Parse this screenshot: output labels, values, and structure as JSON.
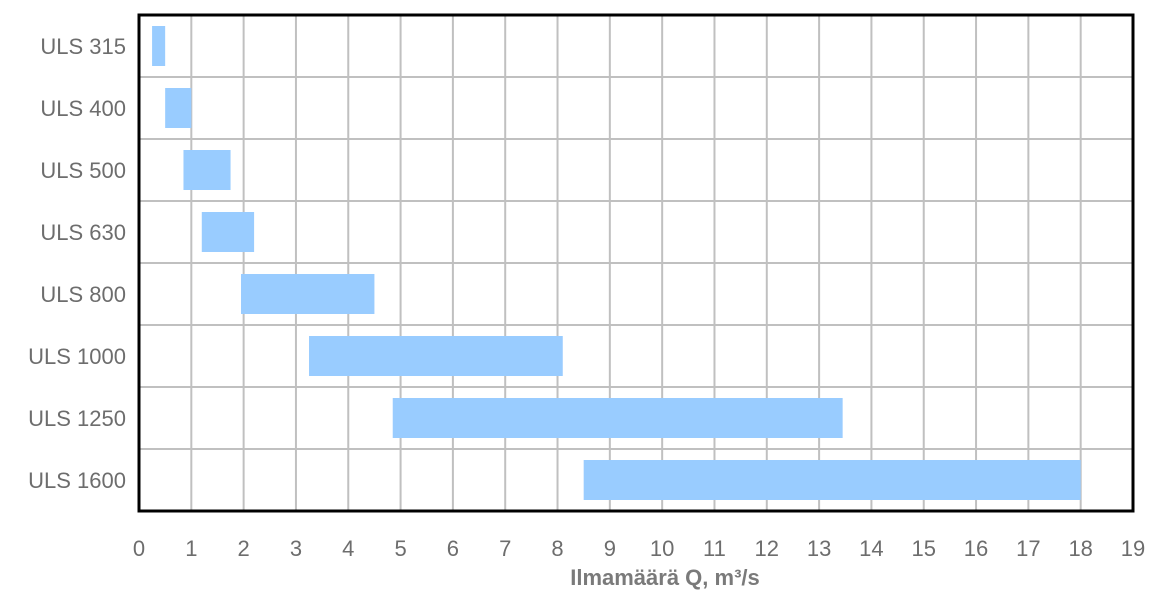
{
  "chart_data": {
    "type": "bar",
    "orientation": "horizontal",
    "variant": "floating-range",
    "categories": [
      "ULS 315",
      "ULS 400",
      "ULS 500",
      "ULS 630",
      "ULS 800",
      "ULS 1000",
      "ULS 1250",
      "ULS 1600"
    ],
    "ranges": [
      [
        0.25,
        0.5
      ],
      [
        0.5,
        1.0
      ],
      [
        0.85,
        1.75
      ],
      [
        1.2,
        2.2
      ],
      [
        1.95,
        4.5
      ],
      [
        3.25,
        8.1
      ],
      [
        4.85,
        13.45
      ],
      [
        8.5,
        18.0
      ]
    ],
    "xlabel": "Ilmamäärä Q, m³/s",
    "xlim": [
      0,
      19
    ],
    "xticks": [
      "0",
      "1",
      "2",
      "3",
      "4",
      "5",
      "6",
      "7",
      "8",
      "9",
      "10",
      "11",
      "12",
      "13",
      "14",
      "15",
      "16",
      "17",
      "18",
      "19"
    ],
    "grid": true,
    "legend": "none",
    "colors": {
      "bar": "#99ccff",
      "grid": "#c0c0c0",
      "frame": "#000000",
      "text": "#6d6d6d"
    }
  }
}
